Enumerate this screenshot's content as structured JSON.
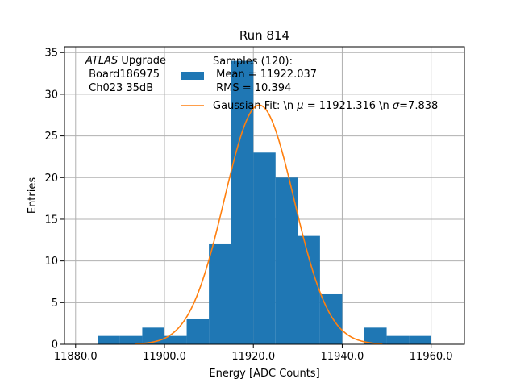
{
  "chart_data": {
    "type": "bar",
    "title": "Run 814",
    "xlabel": "Energy [ADC Counts]",
    "ylabel": "Entries",
    "xlim": [
      11877.5,
      11967.5
    ],
    "ylim": [
      0,
      35.7
    ],
    "xticks": [
      11880,
      11900,
      11920,
      11940,
      11960
    ],
    "xtick_labels": [
      "11880.0",
      "11900.0",
      "11920.0",
      "11940.0",
      "11960.0"
    ],
    "yticks": [
      0,
      5,
      10,
      15,
      20,
      25,
      30,
      35
    ],
    "ytick_labels": [
      "0",
      "5",
      "10",
      "15",
      "20",
      "25",
      "30",
      "35"
    ],
    "grid": true,
    "histogram": {
      "bin_edges": [
        11885,
        11890,
        11895,
        11900,
        11905,
        11910,
        11915,
        11920,
        11925,
        11930,
        11935,
        11940,
        11945,
        11950,
        11955,
        11960
      ],
      "counts": [
        1,
        1,
        2,
        1,
        3,
        12,
        34,
        23,
        20,
        13,
        6,
        0,
        2,
        1,
        1
      ],
      "color": "#1f77b4"
    },
    "fit": {
      "type": "gaussian",
      "mu": 11921.316,
      "sigma": 7.838,
      "amplitude": 28.7,
      "color": "#ff7f0e"
    },
    "annotation": {
      "italic": "ATLAS",
      "rest": " Upgrade",
      "line2": " Board186975",
      "line3": " Ch023 35dB"
    },
    "legend": {
      "placement": "top-center",
      "samples_line1": "Samples (120):",
      "samples_line2": " Mean = 11922.037",
      "samples_line3": " RMS = 10.394",
      "fit_prefix": "Gaussian Fit: \\n ",
      "fit_mu_symbol": "μ",
      "fit_mid": " = 11921.316 \\n ",
      "fit_sigma_symbol": "σ",
      "fit_suffix": "=7.838"
    }
  }
}
